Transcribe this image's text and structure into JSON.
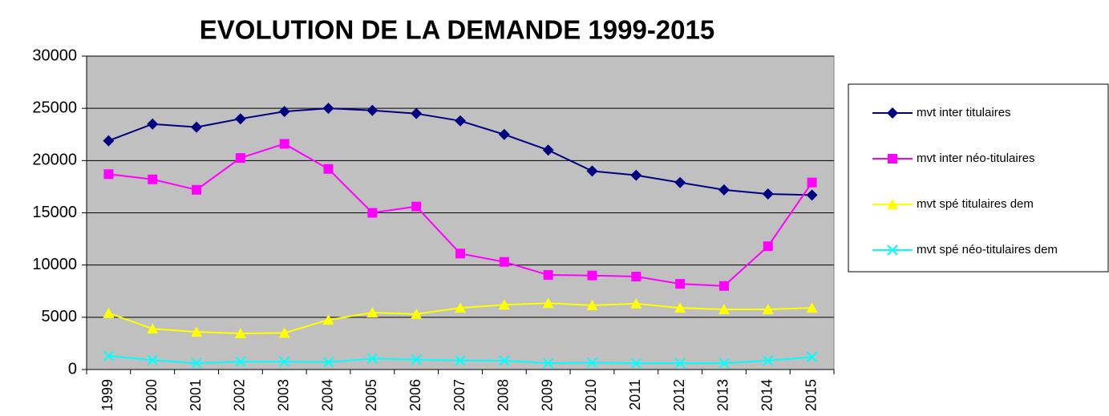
{
  "chart_data": {
    "type": "line",
    "title": "EVOLUTION DE LA DEMANDE 1999-2015",
    "categories": [
      "1999",
      "2000",
      "2001",
      "2002",
      "2003",
      "2004",
      "2005",
      "2006",
      "2007",
      "2008",
      "2009",
      "2010",
      "2011",
      "2012",
      "2013",
      "2014",
      "2015"
    ],
    "series": [
      {
        "name": "mvt inter titulaires",
        "color": "#000080",
        "marker": "diamond",
        "values": [
          21900,
          23500,
          23200,
          24000,
          24700,
          25000,
          24800,
          24500,
          23800,
          22500,
          21000,
          19000,
          18600,
          17900,
          17200,
          16800,
          16700
        ]
      },
      {
        "name": "mvt inter néo-titulaires",
        "color": "#ff00ff",
        "marker": "square",
        "values": [
          18700,
          18200,
          17200,
          20250,
          21600,
          19200,
          15000,
          15600,
          11100,
          10300,
          9050,
          9000,
          8900,
          8200,
          8000,
          11800,
          17900
        ]
      },
      {
        "name": "mvt spé titulaires dem",
        "color": "#ffff00",
        "marker": "triangle",
        "values": [
          5400,
          3900,
          3600,
          3450,
          3500,
          4750,
          5450,
          5300,
          5900,
          6200,
          6350,
          6150,
          6300,
          5900,
          5750,
          5750,
          5900
        ]
      },
      {
        "name": "mvt spé néo-titulaires dem",
        "color": "#00ffff",
        "marker": "x",
        "values": [
          1300,
          900,
          600,
          750,
          750,
          700,
          1050,
          950,
          850,
          850,
          600,
          650,
          600,
          600,
          600,
          850,
          1200
        ]
      }
    ],
    "ylim": [
      0,
      30000
    ],
    "yticks": [
      0,
      5000,
      10000,
      15000,
      20000,
      25000,
      30000
    ],
    "grid": true,
    "legend": "right",
    "plot_background": "#c0c0c0"
  }
}
